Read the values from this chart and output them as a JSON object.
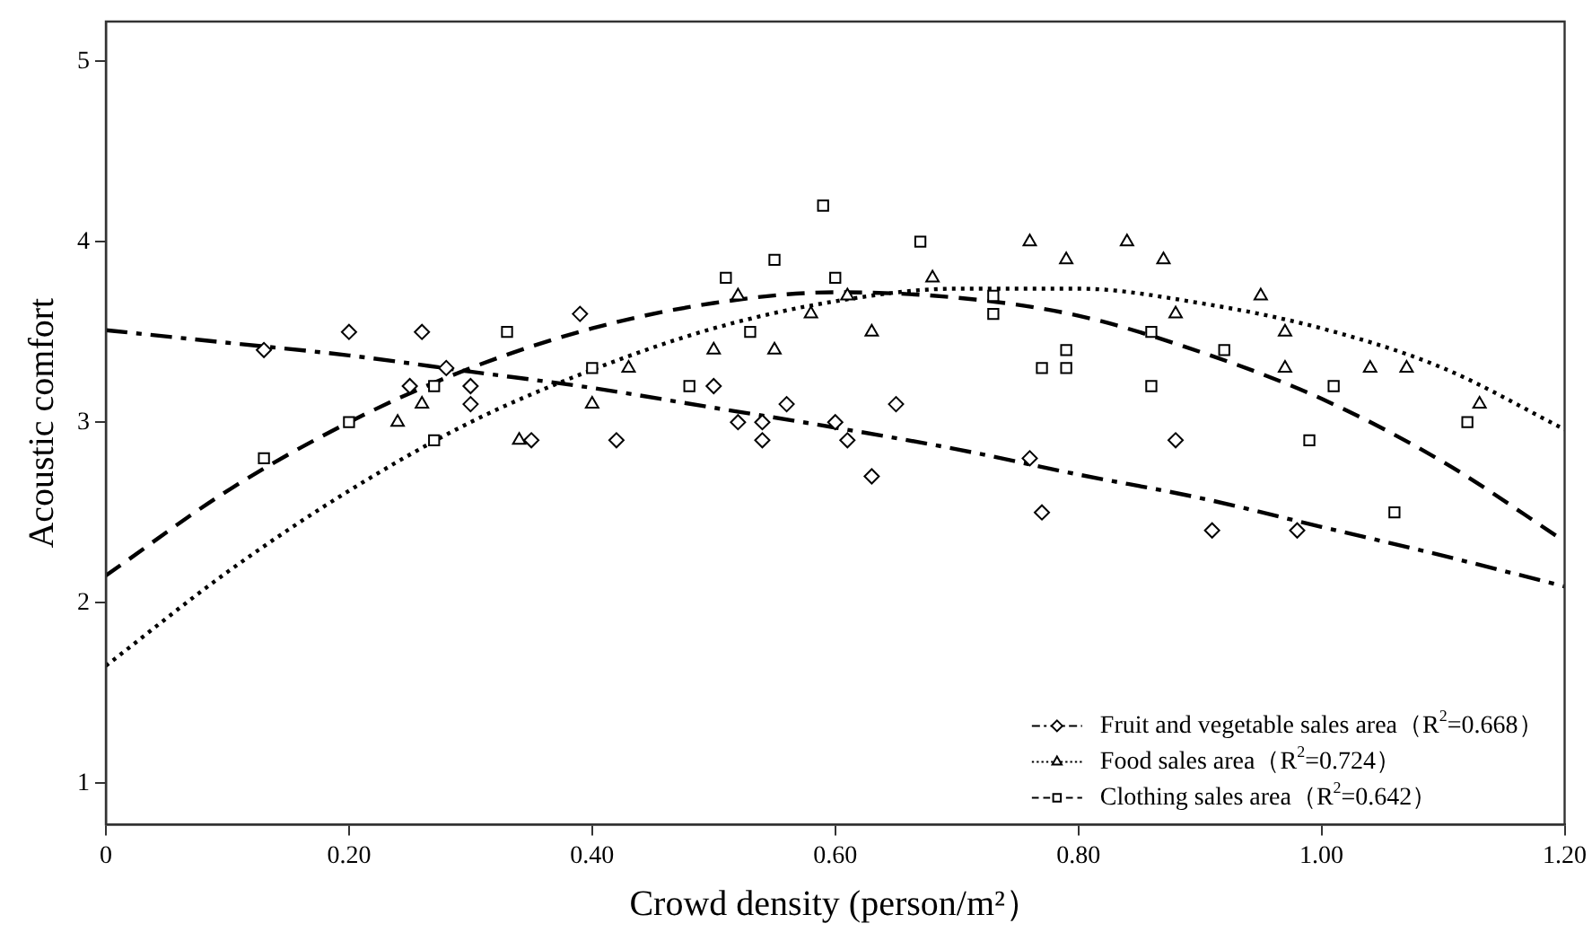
{
  "chart_data": {
    "type": "scatter",
    "xlabel": "Crowd density (person/m²）",
    "ylabel": "Acoustic comfort",
    "xlim": [
      0,
      1.2
    ],
    "ylim": [
      0.77,
      5.22
    ],
    "xticks": [
      0,
      {
        "value": 0.2,
        "label": "0.20"
      },
      {
        "value": 0.4,
        "label": "0.40"
      },
      {
        "value": 0.6,
        "label": "0.60"
      },
      {
        "value": 0.8,
        "label": "0.80"
      },
      {
        "value": 1.0,
        "label": "1.00"
      },
      {
        "value": 1.2,
        "label": "1.20"
      }
    ],
    "yticks": [
      1,
      2,
      3,
      4,
      5
    ],
    "legend": "bottom right",
    "series": [
      {
        "name": "Fruit and vegetable sales area（R$^{2}$=0.668）",
        "marker": "diamond",
        "color": "#000000",
        "x": [
          0.13,
          0.2,
          0.26,
          0.28,
          0.25,
          0.3,
          0.3,
          0.35,
          0.39,
          0.42,
          0.5,
          0.52,
          0.54,
          0.54,
          0.56,
          0.6,
          0.61,
          0.63,
          0.65,
          0.76,
          0.77,
          0.88,
          0.91,
          0.98
        ],
        "values": [
          3.4,
          3.5,
          3.5,
          3.3,
          3.2,
          3.2,
          3.1,
          2.9,
          3.6,
          2.9,
          3.2,
          3.0,
          3.0,
          2.9,
          3.1,
          3.0,
          2.9,
          2.7,
          3.1,
          2.8,
          2.5,
          2.9,
          2.4,
          2.4
        ]
      },
      {
        "name": "Food sales area（R$^{2}$=0.724）",
        "marker": "triangle",
        "color": "#000000",
        "x": [
          0.24,
          0.26,
          0.34,
          0.4,
          0.43,
          0.5,
          0.52,
          0.55,
          0.58,
          0.61,
          0.63,
          0.68,
          0.76,
          0.79,
          0.84,
          0.87,
          0.88,
          0.95,
          0.97,
          0.97,
          1.04,
          1.07,
          1.13
        ],
        "values": [
          3.0,
          3.1,
          2.9,
          3.1,
          3.3,
          3.4,
          3.7,
          3.4,
          3.6,
          3.7,
          3.5,
          3.8,
          4.0,
          3.9,
          4.0,
          3.9,
          3.6,
          3.7,
          3.5,
          3.3,
          3.3,
          3.3,
          3.1
        ]
      },
      {
        "name": "Clothing sales area（R$^{2}$=0.642）",
        "marker": "square",
        "color": "#000000",
        "x": [
          0.13,
          0.2,
          0.27,
          0.27,
          0.33,
          0.4,
          0.48,
          0.51,
          0.53,
          0.55,
          0.59,
          0.6,
          0.67,
          0.73,
          0.73,
          0.77,
          0.79,
          0.79,
          0.86,
          0.86,
          0.92,
          0.99,
          1.01,
          1.06,
          1.12
        ],
        "values": [
          2.8,
          3.0,
          2.9,
          3.2,
          3.5,
          3.3,
          3.2,
          3.8,
          3.5,
          3.9,
          4.2,
          3.8,
          4.0,
          3.7,
          3.6,
          3.3,
          3.4,
          3.3,
          3.5,
          3.2,
          3.4,
          2.9,
          3.2,
          2.5,
          3.0
        ]
      },
      {
        "type": "line",
        "marker": "none",
        "line_style": "dashdot",
        "color": "#000000",
        "x": [
          0,
          0.1,
          0.2,
          0.3,
          0.4,
          0.5,
          0.6,
          0.7,
          0.8,
          0.9,
          1.0,
          1.1,
          1.2
        ],
        "values": [
          3.51,
          3.44,
          3.37,
          3.28,
          3.19,
          3.08,
          2.97,
          2.85,
          2.71,
          2.58,
          2.42,
          2.26,
          2.09
        ]
      },
      {
        "type": "line",
        "marker": "none",
        "line_style": "dotted",
        "color": "#000000",
        "x": [
          0,
          0.1,
          0.2,
          0.3,
          0.4,
          0.5,
          0.6,
          0.7,
          0.8,
          0.9,
          1.0,
          1.1,
          1.2
        ],
        "values": [
          1.65,
          2.17,
          2.62,
          3.0,
          3.29,
          3.52,
          3.67,
          3.74,
          3.74,
          3.66,
          3.52,
          3.3,
          2.96
        ]
      },
      {
        "type": "line",
        "marker": "none",
        "line_style": "dashed",
        "color": "#000000",
        "x": [
          0,
          0.1,
          0.2,
          0.3,
          0.4,
          0.5,
          0.6,
          0.7,
          0.8,
          0.9,
          1.0,
          1.1,
          1.2
        ],
        "values": [
          2.15,
          2.62,
          3.0,
          3.3,
          3.52,
          3.66,
          3.72,
          3.69,
          3.59,
          3.39,
          3.13,
          2.78,
          2.34
        ]
      }
    ]
  }
}
